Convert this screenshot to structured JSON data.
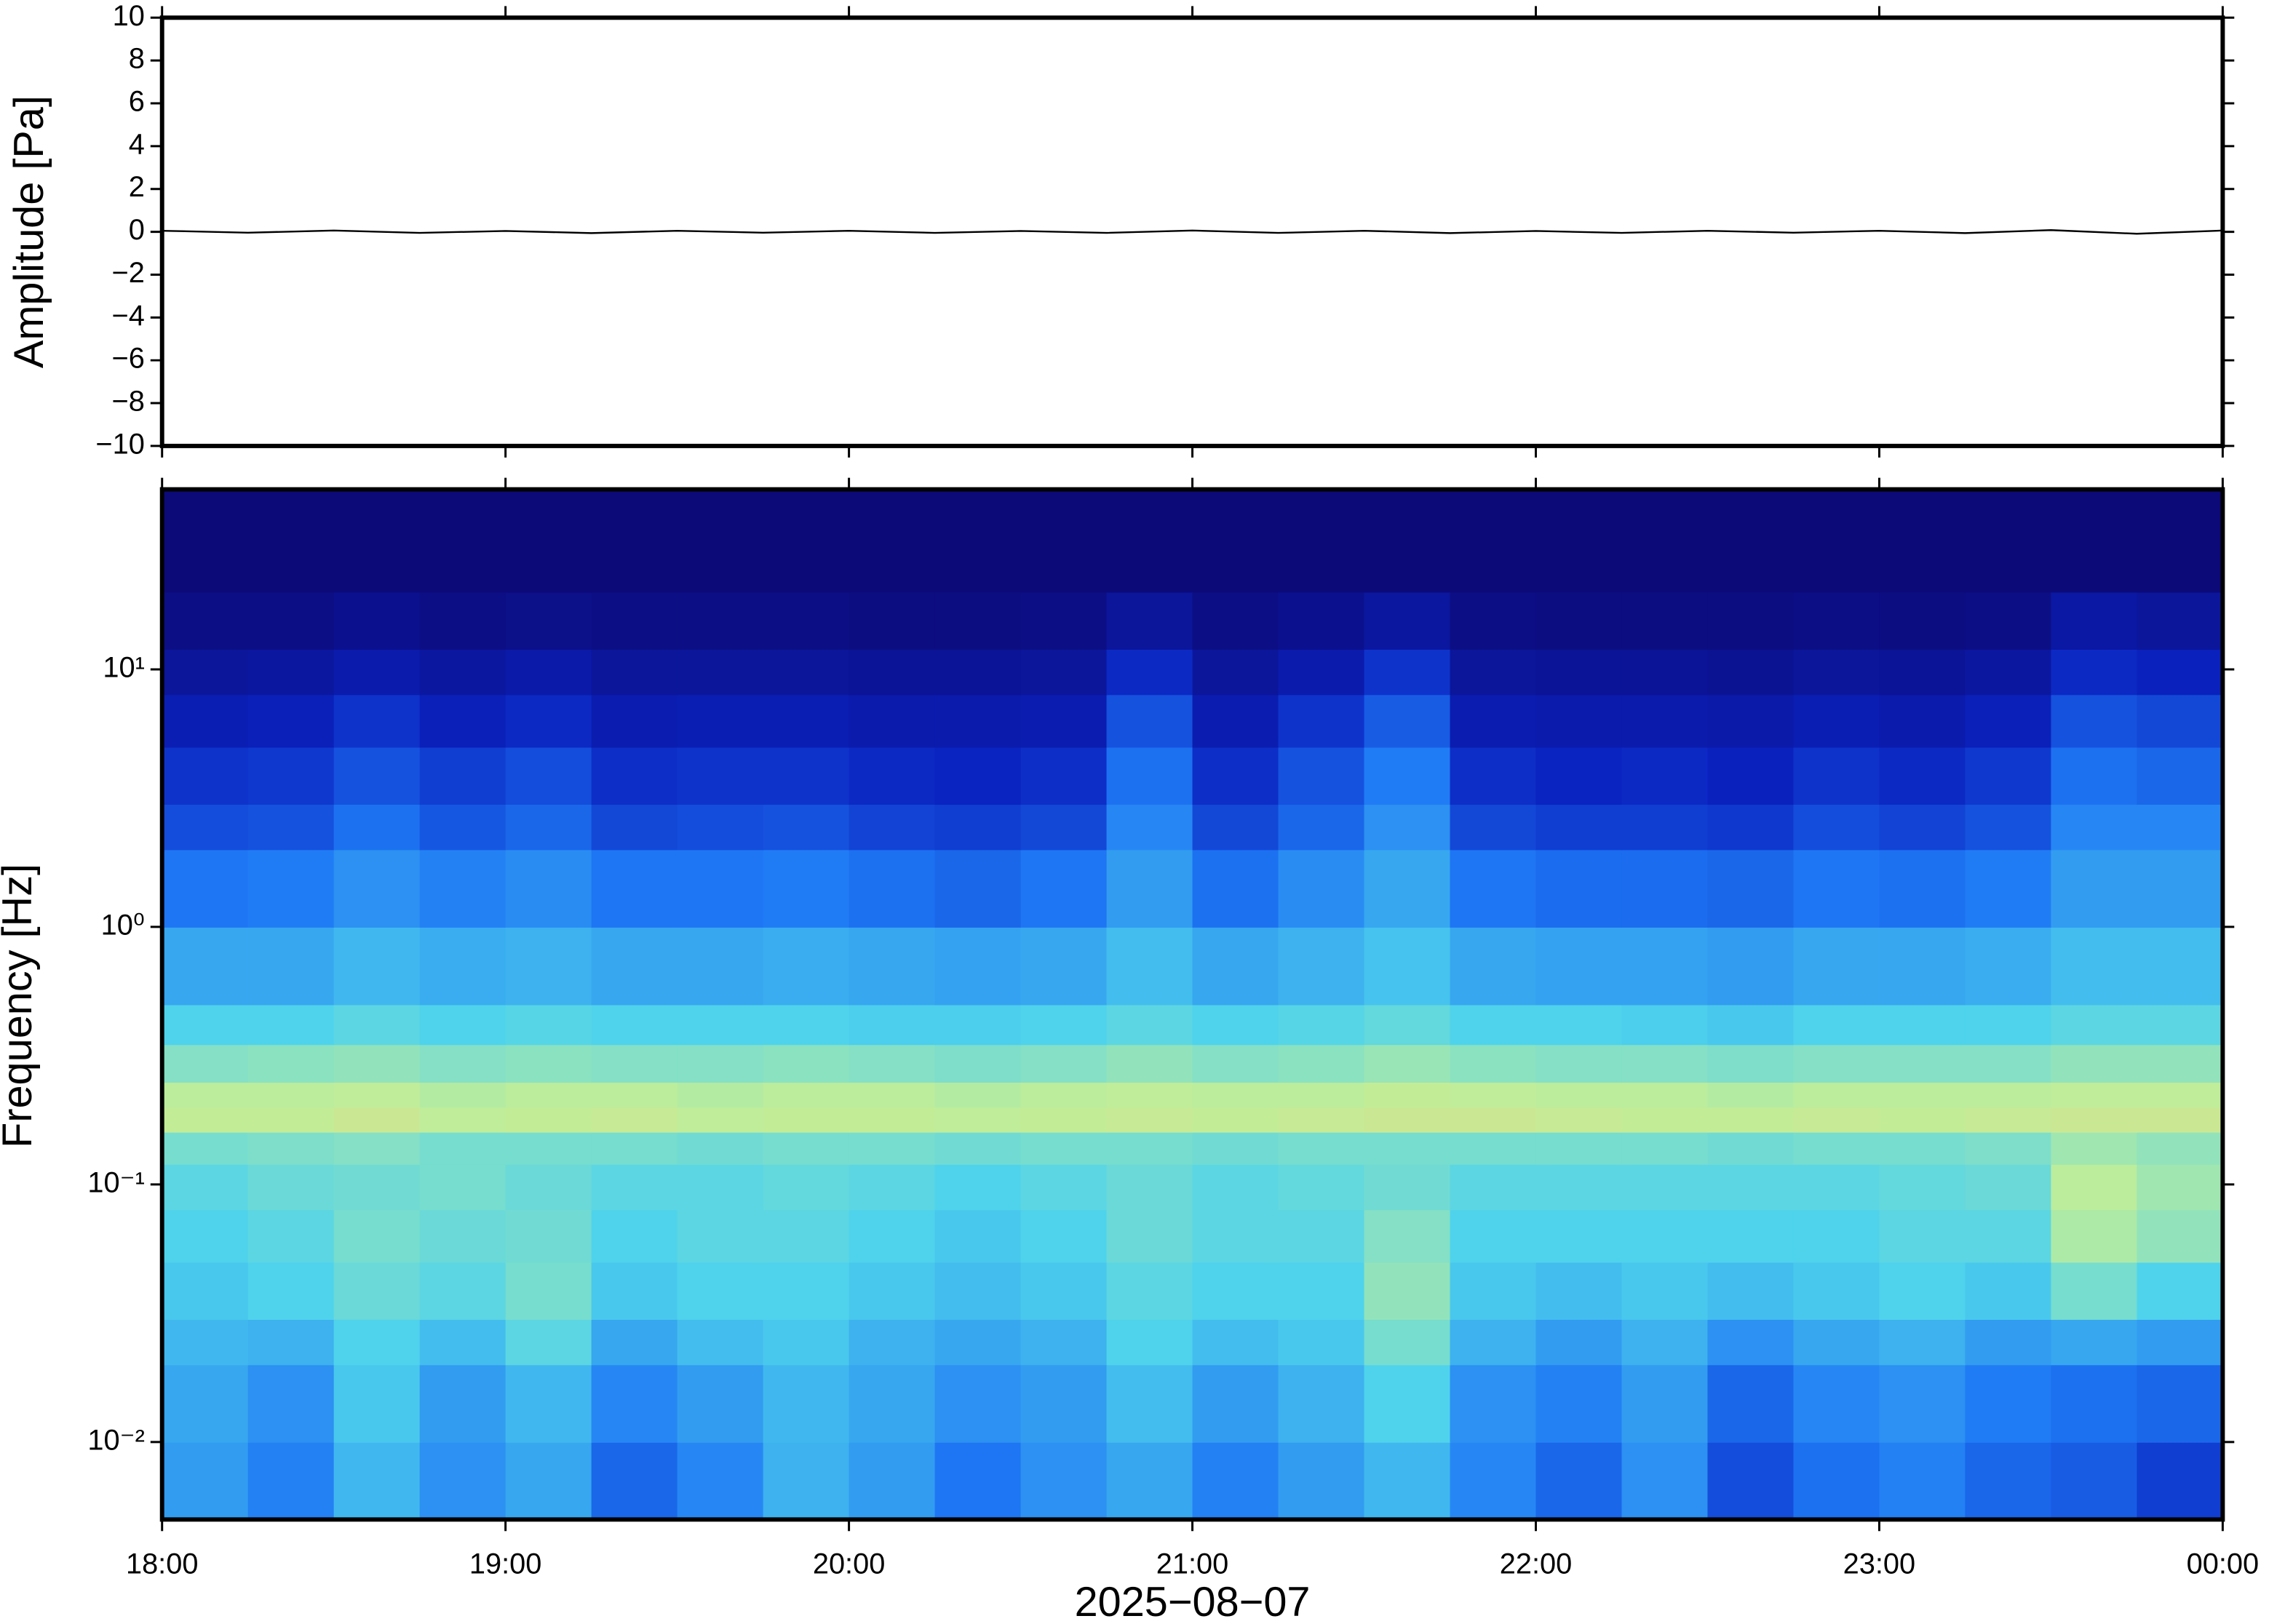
{
  "chart_data": [
    {
      "type": "line",
      "ylabel": "Amplitude [Pa]",
      "color": "#000000",
      "x": [
        18,
        18.25,
        18.5,
        18.75,
        19,
        19.25,
        19.5,
        19.75,
        20,
        20.25,
        20.5,
        20.75,
        21,
        21.25,
        21.5,
        21.75,
        22,
        22.25,
        22.5,
        22.75,
        23,
        23.25,
        23.5,
        23.75,
        24
      ],
      "values": [
        0.05,
        -0.04,
        0.06,
        -0.05,
        0.04,
        -0.06,
        0.05,
        -0.04,
        0.05,
        -0.05,
        0.04,
        -0.05,
        0.06,
        -0.05,
        0.05,
        -0.06,
        0.04,
        -0.05,
        0.05,
        -0.04,
        0.05,
        -0.06,
        0.08,
        -0.09,
        0.06
      ],
      "xlim": [
        18,
        24
      ],
      "xticks": [
        18,
        19,
        20,
        21,
        22,
        23,
        24
      ],
      "ylim": [
        -10,
        10
      ],
      "yticks": [
        {
          "value": -10,
          "label": "−10"
        },
        {
          "value": -8,
          "label": "−8"
        },
        {
          "value": -6,
          "label": "−6"
        },
        {
          "value": -4,
          "label": "−4"
        },
        {
          "value": -2,
          "label": "−2"
        },
        0,
        2,
        4,
        6,
        8,
        10
      ]
    },
    {
      "type": "heatmap",
      "ylabel": "Frequency [Hz]",
      "xlabel": "2025−08−07",
      "ylog": true,
      "colormap": [
        "#0c0a78",
        "#0a22c0",
        "#1e78f5",
        "#4fd3ec",
        "#bfee9a",
        "#f6d27a",
        "#e4502a"
      ],
      "xlim": [
        18,
        24
      ],
      "xticks": [
        {
          "value": 18,
          "label": "18:00"
        },
        {
          "value": 19,
          "label": "19:00"
        },
        {
          "value": 20,
          "label": "20:00"
        },
        {
          "value": 21,
          "label": "21:00"
        },
        {
          "value": 22,
          "label": "22:00"
        },
        {
          "value": 23,
          "label": "23:00"
        },
        {
          "value": 24,
          "label": "00:00"
        }
      ],
      "ylim": [
        0.005,
        50
      ],
      "yticks": [
        {
          "value": 0.01,
          "label": "10⁻²"
        },
        {
          "value": 0.1,
          "label": "10⁻¹"
        },
        {
          "value": 1,
          "label": "10⁰"
        },
        {
          "value": 10,
          "label": "10¹"
        }
      ],
      "x_edges": [
        18,
        18.25,
        18.5,
        18.75,
        19,
        19.25,
        19.5,
        19.75,
        20,
        20.25,
        20.5,
        20.75,
        21,
        21.25,
        21.5,
        21.75,
        22,
        22.25,
        22.5,
        22.75,
        23,
        23.25,
        23.5,
        23.75,
        24
      ],
      "y_edges": [
        0.005,
        0.01,
        0.02,
        0.03,
        0.05,
        0.08,
        0.12,
        0.16,
        0.2,
        0.25,
        0.35,
        0.5,
        1,
        2,
        3,
        5,
        8,
        12,
        20,
        50
      ],
      "z": [
        [
          0.4,
          0.35,
          0.45,
          0.38,
          0.42,
          0.3,
          0.36,
          0.44,
          0.4,
          0.33,
          0.38,
          0.42,
          0.35,
          0.4,
          0.45,
          0.36,
          0.3,
          0.38,
          0.25,
          0.32,
          0.35,
          0.3,
          0.28,
          0.22
        ],
        [
          0.42,
          0.38,
          0.48,
          0.4,
          0.45,
          0.36,
          0.4,
          0.45,
          0.42,
          0.38,
          0.4,
          0.46,
          0.4,
          0.44,
          0.5,
          0.38,
          0.35,
          0.4,
          0.3,
          0.36,
          0.38,
          0.34,
          0.32,
          0.3
        ],
        [
          0.45,
          0.44,
          0.5,
          0.46,
          0.52,
          0.42,
          0.46,
          0.48,
          0.44,
          0.42,
          0.44,
          0.5,
          0.46,
          0.48,
          0.56,
          0.44,
          0.4,
          0.44,
          0.38,
          0.42,
          0.44,
          0.4,
          0.42,
          0.4
        ],
        [
          0.48,
          0.5,
          0.54,
          0.52,
          0.56,
          0.48,
          0.5,
          0.5,
          0.48,
          0.46,
          0.48,
          0.52,
          0.5,
          0.5,
          0.6,
          0.48,
          0.46,
          0.48,
          0.46,
          0.48,
          0.5,
          0.48,
          0.56,
          0.5
        ],
        [
          0.5,
          0.52,
          0.56,
          0.54,
          0.55,
          0.5,
          0.52,
          0.52,
          0.5,
          0.48,
          0.5,
          0.54,
          0.52,
          0.52,
          0.58,
          0.5,
          0.5,
          0.5,
          0.5,
          0.5,
          0.52,
          0.52,
          0.64,
          0.6
        ],
        [
          0.52,
          0.54,
          0.55,
          0.56,
          0.54,
          0.52,
          0.52,
          0.53,
          0.52,
          0.5,
          0.52,
          0.54,
          0.52,
          0.53,
          0.55,
          0.52,
          0.52,
          0.52,
          0.52,
          0.52,
          0.53,
          0.54,
          0.66,
          0.62
        ],
        [
          0.56,
          0.57,
          0.58,
          0.56,
          0.56,
          0.56,
          0.55,
          0.56,
          0.56,
          0.55,
          0.56,
          0.56,
          0.55,
          0.56,
          0.56,
          0.56,
          0.56,
          0.56,
          0.55,
          0.56,
          0.56,
          0.57,
          0.62,
          0.6
        ],
        [
          0.68,
          0.68,
          0.7,
          0.67,
          0.68,
          0.69,
          0.67,
          0.68,
          0.68,
          0.67,
          0.68,
          0.69,
          0.68,
          0.69,
          0.7,
          0.7,
          0.69,
          0.68,
          0.68,
          0.69,
          0.68,
          0.69,
          0.7,
          0.7
        ],
        [
          0.66,
          0.66,
          0.67,
          0.65,
          0.66,
          0.66,
          0.65,
          0.66,
          0.66,
          0.65,
          0.66,
          0.67,
          0.66,
          0.66,
          0.68,
          0.67,
          0.66,
          0.66,
          0.65,
          0.66,
          0.66,
          0.66,
          0.67,
          0.67
        ],
        [
          0.58,
          0.59,
          0.6,
          0.58,
          0.59,
          0.58,
          0.58,
          0.59,
          0.58,
          0.57,
          0.58,
          0.6,
          0.58,
          0.59,
          0.61,
          0.59,
          0.58,
          0.58,
          0.57,
          0.58,
          0.58,
          0.58,
          0.6,
          0.6
        ],
        [
          0.5,
          0.5,
          0.52,
          0.5,
          0.51,
          0.5,
          0.5,
          0.5,
          0.49,
          0.49,
          0.5,
          0.52,
          0.5,
          0.51,
          0.53,
          0.5,
          0.5,
          0.49,
          0.48,
          0.5,
          0.5,
          0.5,
          0.52,
          0.52
        ],
        [
          0.42,
          0.42,
          0.45,
          0.43,
          0.44,
          0.42,
          0.42,
          0.43,
          0.42,
          0.41,
          0.42,
          0.46,
          0.42,
          0.44,
          0.47,
          0.42,
          0.41,
          0.41,
          0.4,
          0.42,
          0.42,
          0.43,
          0.46,
          0.46
        ],
        [
          0.33,
          0.34,
          0.38,
          0.35,
          0.37,
          0.33,
          0.33,
          0.34,
          0.32,
          0.3,
          0.33,
          0.4,
          0.32,
          0.37,
          0.42,
          0.33,
          0.31,
          0.31,
          0.3,
          0.33,
          0.32,
          0.34,
          0.4,
          0.4
        ],
        [
          0.25,
          0.26,
          0.32,
          0.27,
          0.3,
          0.24,
          0.25,
          0.26,
          0.23,
          0.22,
          0.24,
          0.36,
          0.24,
          0.3,
          0.38,
          0.24,
          0.22,
          0.22,
          0.21,
          0.25,
          0.23,
          0.26,
          0.36,
          0.36
        ],
        [
          0.2,
          0.21,
          0.26,
          0.22,
          0.25,
          0.19,
          0.2,
          0.2,
          0.18,
          0.17,
          0.19,
          0.32,
          0.19,
          0.26,
          0.34,
          0.19,
          0.17,
          0.18,
          0.16,
          0.2,
          0.18,
          0.21,
          0.32,
          0.3
        ],
        [
          0.14,
          0.15,
          0.2,
          0.15,
          0.18,
          0.13,
          0.14,
          0.14,
          0.12,
          0.12,
          0.13,
          0.26,
          0.13,
          0.2,
          0.28,
          0.13,
          0.12,
          0.12,
          0.11,
          0.14,
          0.12,
          0.15,
          0.26,
          0.24
        ],
        [
          0.08,
          0.09,
          0.12,
          0.09,
          0.11,
          0.08,
          0.08,
          0.08,
          0.07,
          0.07,
          0.08,
          0.18,
          0.08,
          0.12,
          0.2,
          0.08,
          0.07,
          0.07,
          0.06,
          0.08,
          0.07,
          0.09,
          0.18,
          0.16
        ],
        [
          0.03,
          0.03,
          0.05,
          0.03,
          0.04,
          0.03,
          0.03,
          0.03,
          0.02,
          0.02,
          0.03,
          0.08,
          0.03,
          0.05,
          0.09,
          0.03,
          0.02,
          0.02,
          0.02,
          0.03,
          0.02,
          0.03,
          0.1,
          0.08
        ],
        [
          0,
          0,
          0,
          0,
          0,
          0,
          0,
          0,
          0,
          0,
          0,
          0,
          0,
          0,
          0,
          0,
          0,
          0,
          0,
          0,
          0,
          0,
          0,
          0
        ]
      ]
    }
  ]
}
